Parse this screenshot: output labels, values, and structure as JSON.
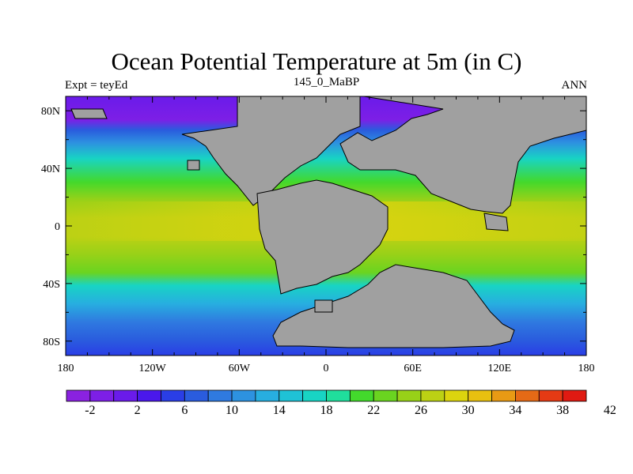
{
  "title": "Ocean Potential Temperature at 5m (in C)",
  "left_string": "Expt = teyEd",
  "center_string": "145_0_MaBP",
  "right_string": "ANN",
  "map_projection": "cylindrical equidistant",
  "lon_range": [
    -180,
    180
  ],
  "lat_range": [
    -90,
    90
  ],
  "lon_ticks": [
    {
      "value": -180,
      "label": "180"
    },
    {
      "value": -120,
      "label": "120W"
    },
    {
      "value": -60,
      "label": "60W"
    },
    {
      "value": 0,
      "label": "0"
    },
    {
      "value": 60,
      "label": "60E"
    },
    {
      "value": 120,
      "label": "120E"
    },
    {
      "value": 180,
      "label": "180"
    }
  ],
  "lat_ticks": [
    {
      "value": 80,
      "label": "80N"
    },
    {
      "value": 40,
      "label": "40N"
    },
    {
      "value": 0,
      "label": "0"
    },
    {
      "value": -40,
      "label": "40S"
    },
    {
      "value": -80,
      "label": "80S"
    }
  ],
  "land_color": "#a0a0a0",
  "colorbar": {
    "colors": [
      "#8a22e0",
      "#7d1fe6",
      "#6a1bea",
      "#4a18ec",
      "#2a3ee6",
      "#2a5cde",
      "#2f7ae0",
      "#2d92e0",
      "#27aee0",
      "#1fc2d6",
      "#18d4c4",
      "#20de9c",
      "#43d92c",
      "#6ad420",
      "#98d118",
      "#bcd114",
      "#dcd40e",
      "#e8c010",
      "#e89a14",
      "#e56a16",
      "#e53a14",
      "#e01a12"
    ],
    "labels": [
      "-2",
      "2",
      "6",
      "10",
      "14",
      "18",
      "22",
      "26",
      "30",
      "34",
      "38",
      "42"
    ]
  },
  "chart_data": {
    "type": "heatmap",
    "title": "Ocean Potential Temperature at 5m (in C)",
    "variable": "Ocean Potential Temperature",
    "units": "C",
    "level": "5m",
    "experiment": "teyEd",
    "period": "145_0_MaBP",
    "season": "ANN",
    "x_range": [
      -180,
      180
    ],
    "y_range": [
      -90,
      90
    ],
    "colorbar_levels": [
      -4,
      -2,
      0,
      2,
      4,
      6,
      8,
      10,
      12,
      14,
      16,
      18,
      20,
      22,
      24,
      26,
      28,
      30,
      32,
      34,
      36,
      38,
      40,
      42,
      44
    ],
    "zonal_mean_profile": {
      "lat": [
        90,
        80,
        70,
        60,
        50,
        40,
        30,
        20,
        10,
        0,
        -10,
        -20,
        -30,
        -40,
        -50,
        -60,
        -70,
        -80,
        -90
      ],
      "temperature": [
        -1,
        -1,
        3,
        10,
        16,
        22,
        26,
        29,
        30,
        30,
        30,
        29,
        26,
        22,
        16,
        10,
        6,
        2,
        0
      ]
    }
  }
}
